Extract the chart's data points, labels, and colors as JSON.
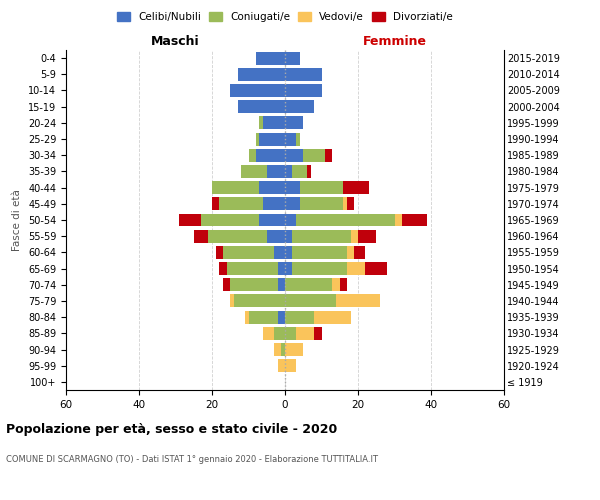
{
  "age_groups": [
    "100+",
    "95-99",
    "90-94",
    "85-89",
    "80-84",
    "75-79",
    "70-74",
    "65-69",
    "60-64",
    "55-59",
    "50-54",
    "45-49",
    "40-44",
    "35-39",
    "30-34",
    "25-29",
    "20-24",
    "15-19",
    "10-14",
    "5-9",
    "0-4"
  ],
  "birth_years": [
    "≤ 1919",
    "1920-1924",
    "1925-1929",
    "1930-1934",
    "1935-1939",
    "1940-1944",
    "1945-1949",
    "1950-1954",
    "1955-1959",
    "1960-1964",
    "1965-1969",
    "1970-1974",
    "1975-1979",
    "1980-1984",
    "1985-1989",
    "1990-1994",
    "1995-1999",
    "2000-2004",
    "2005-2009",
    "2010-2014",
    "2015-2019"
  ],
  "colors": {
    "celibi": "#4472C4",
    "coniugati": "#9BBB59",
    "vedovi": "#FAC45B",
    "divorziati": "#C0000B"
  },
  "male": {
    "celibi": [
      0,
      0,
      0,
      0,
      2,
      0,
      2,
      2,
      3,
      5,
      7,
      6,
      7,
      5,
      8,
      7,
      6,
      13,
      15,
      13,
      8
    ],
    "coniugati": [
      0,
      0,
      1,
      3,
      8,
      14,
      13,
      14,
      14,
      16,
      16,
      12,
      13,
      7,
      2,
      1,
      1,
      0,
      0,
      0,
      0
    ],
    "vedovi": [
      0,
      2,
      2,
      3,
      1,
      1,
      0,
      0,
      0,
      0,
      0,
      0,
      0,
      0,
      0,
      0,
      0,
      0,
      0,
      0,
      0
    ],
    "divorziati": [
      0,
      0,
      0,
      0,
      0,
      0,
      2,
      2,
      2,
      4,
      6,
      2,
      0,
      0,
      0,
      0,
      0,
      0,
      0,
      0,
      0
    ]
  },
  "female": {
    "celibi": [
      0,
      0,
      0,
      0,
      0,
      0,
      0,
      2,
      2,
      2,
      3,
      4,
      4,
      2,
      5,
      3,
      5,
      8,
      10,
      10,
      4
    ],
    "coniugati": [
      0,
      0,
      0,
      3,
      8,
      14,
      13,
      15,
      15,
      16,
      27,
      12,
      12,
      4,
      6,
      1,
      0,
      0,
      0,
      0,
      0
    ],
    "vedovi": [
      0,
      3,
      5,
      5,
      10,
      12,
      2,
      5,
      2,
      2,
      2,
      1,
      0,
      0,
      0,
      0,
      0,
      0,
      0,
      0,
      0
    ],
    "divorziati": [
      0,
      0,
      0,
      2,
      0,
      0,
      2,
      6,
      3,
      5,
      7,
      2,
      7,
      1,
      2,
      0,
      0,
      0,
      0,
      0,
      0
    ]
  },
  "xlim": 60,
  "title": "Popolazione per età, sesso e stato civile - 2020",
  "subtitle": "COMUNE DI SCARMAGNO (TO) - Dati ISTAT 1° gennaio 2020 - Elaborazione TUTTITALIA.IT",
  "xlabel_left": "Maschi",
  "xlabel_right": "Femmine",
  "ylabel_left": "Fasce di età",
  "legend_labels": [
    "Celibi/Nubili",
    "Coniugati/e",
    "Vedovi/e",
    "Divorziati/e"
  ],
  "background_color": "#ffffff",
  "grid_color": "#cccccc"
}
